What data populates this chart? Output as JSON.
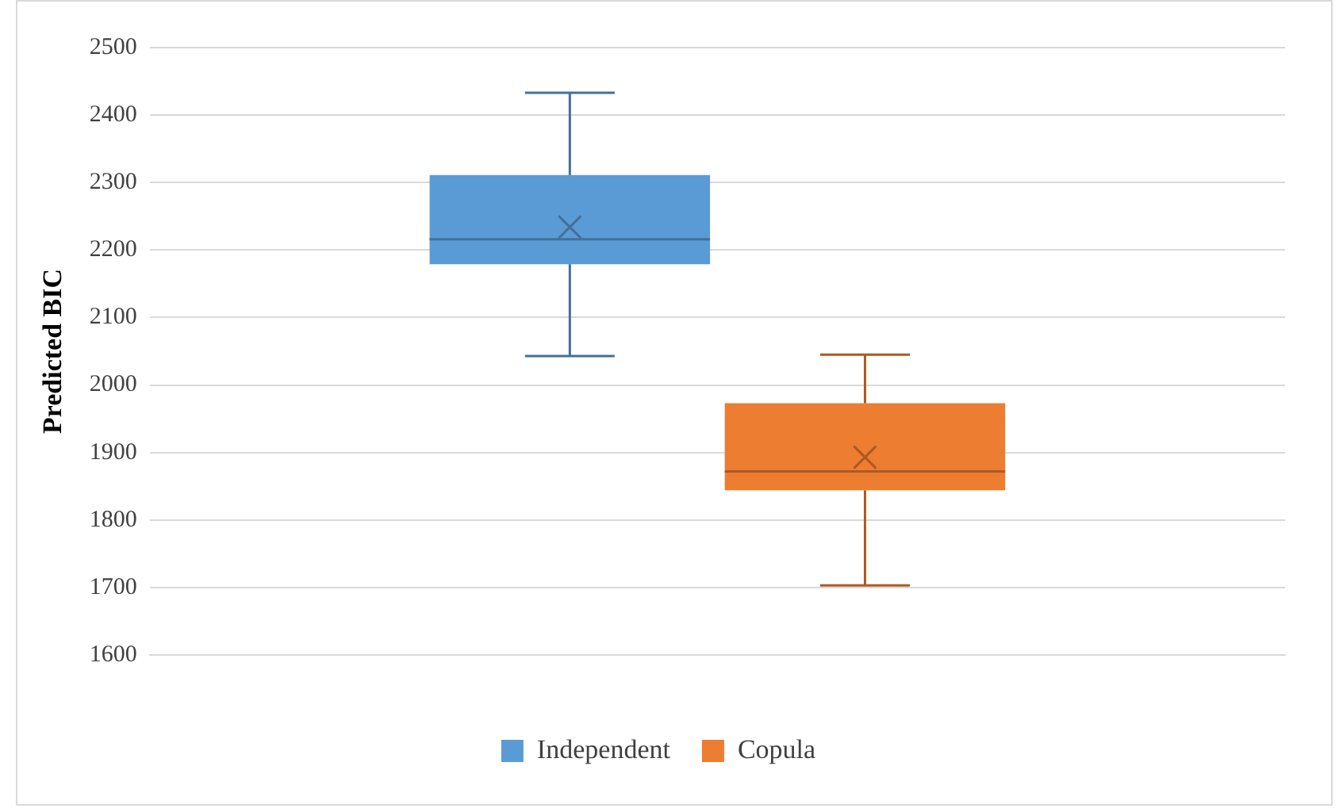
{
  "chart_data": {
    "type": "box",
    "ylabel": "Predicted BIC",
    "categories": [
      null
    ],
    "series": [
      {
        "name": "Independent",
        "color": "#5b9bd5",
        "boxes": [
          {
            "low": 2043,
            "q1": 2179,
            "median": 2216,
            "q3": 2311,
            "high": 2433,
            "mean": 2234
          }
        ]
      },
      {
        "name": "Copula",
        "color": "#ed7d31",
        "boxes": [
          {
            "low": 1703,
            "q1": 1844,
            "median": 1872,
            "q3": 1973,
            "high": 2045,
            "mean": 1893
          }
        ]
      }
    ],
    "ylim": [
      1600,
      2500
    ],
    "yticks": [
      1600,
      1700,
      1800,
      1900,
      2000,
      2100,
      2200,
      2300,
      2400,
      2500
    ],
    "grid": "y",
    "legend": "bottom"
  }
}
